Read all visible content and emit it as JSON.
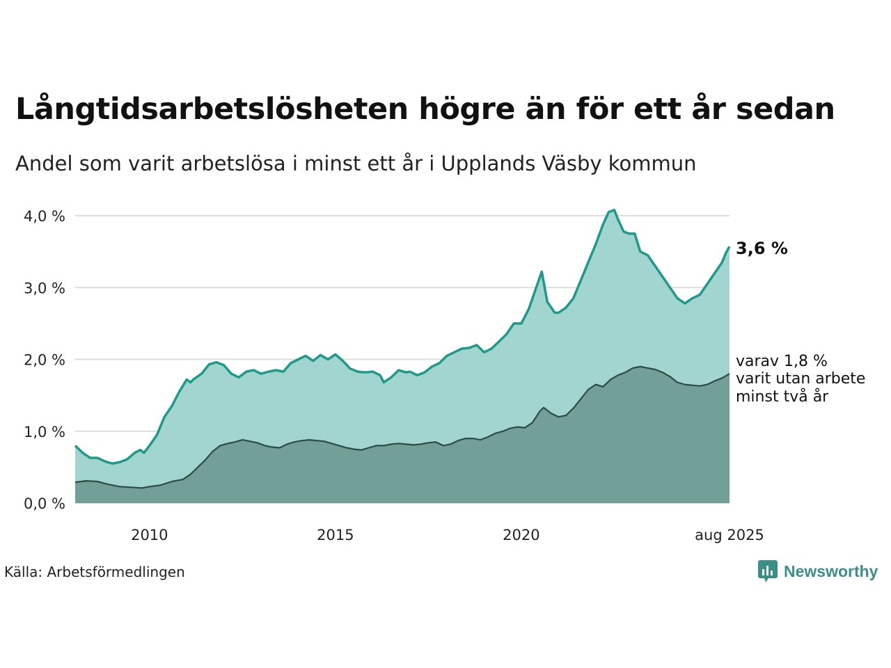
{
  "title": "Långtidsarbetslösheten högre än för ett år sedan",
  "subtitle": "Andel som varit arbetslösa i minst ett år i Upplands Väsby kommun",
  "source": "Källa: Arbetsförmedlingen",
  "brand": {
    "name": "Newsworthy",
    "color": "#3a8f86",
    "icon": "bar-chart-speech-icon"
  },
  "colors": {
    "area_total": "#a2d5cf",
    "line_total": "#1f9a88",
    "area_long": "#729f98",
    "line_long": "#2e4a46",
    "grid": "#dddddd"
  },
  "end_labels": {
    "total": "3,6 %",
    "long_line1": "varav 1,8 %",
    "long_line2": "varit utan arbete",
    "long_line3": "minst två år"
  },
  "chart_data": {
    "type": "area",
    "x_ticks": [
      {
        "x": 2010,
        "label": "2010"
      },
      {
        "x": 2015,
        "label": "2015"
      },
      {
        "x": 2020,
        "label": "2020"
      },
      {
        "x": 2025.6,
        "label": "aug 2025"
      }
    ],
    "y_ticks": [
      {
        "y": 0,
        "label": "0,0 %"
      },
      {
        "y": 1,
        "label": "1,0 %"
      },
      {
        "y": 2,
        "label": "2,0 %"
      },
      {
        "y": 3,
        "label": "3,0 %"
      },
      {
        "y": 4,
        "label": "4,0 %"
      }
    ],
    "xlim": [
      2008.0,
      2025.6
    ],
    "ylim": [
      0,
      4.0
    ],
    "grid": true,
    "series": [
      {
        "key": "total",
        "points": [
          [
            2008.0,
            0.8
          ],
          [
            2008.2,
            0.7
          ],
          [
            2008.4,
            0.63
          ],
          [
            2008.6,
            0.63
          ],
          [
            2008.8,
            0.58
          ],
          [
            2009.0,
            0.55
          ],
          [
            2009.2,
            0.57
          ],
          [
            2009.4,
            0.61
          ],
          [
            2009.6,
            0.7
          ],
          [
            2009.75,
            0.74
          ],
          [
            2009.85,
            0.7
          ],
          [
            2010.0,
            0.8
          ],
          [
            2010.2,
            0.95
          ],
          [
            2010.4,
            1.2
          ],
          [
            2010.6,
            1.35
          ],
          [
            2010.8,
            1.55
          ],
          [
            2011.0,
            1.72
          ],
          [
            2011.1,
            1.68
          ],
          [
            2011.2,
            1.73
          ],
          [
            2011.4,
            1.8
          ],
          [
            2011.6,
            1.93
          ],
          [
            2011.8,
            1.96
          ],
          [
            2012.0,
            1.92
          ],
          [
            2012.2,
            1.8
          ],
          [
            2012.4,
            1.75
          ],
          [
            2012.6,
            1.83
          ],
          [
            2012.8,
            1.85
          ],
          [
            2013.0,
            1.8
          ],
          [
            2013.2,
            1.83
          ],
          [
            2013.4,
            1.85
          ],
          [
            2013.6,
            1.83
          ],
          [
            2013.8,
            1.95
          ],
          [
            2014.0,
            2.0
          ],
          [
            2014.2,
            2.05
          ],
          [
            2014.4,
            1.98
          ],
          [
            2014.6,
            2.06
          ],
          [
            2014.8,
            2.0
          ],
          [
            2015.0,
            2.07
          ],
          [
            2015.2,
            1.98
          ],
          [
            2015.4,
            1.87
          ],
          [
            2015.6,
            1.83
          ],
          [
            2015.8,
            1.82
          ],
          [
            2016.0,
            1.83
          ],
          [
            2016.2,
            1.78
          ],
          [
            2016.3,
            1.68
          ],
          [
            2016.5,
            1.75
          ],
          [
            2016.7,
            1.85
          ],
          [
            2016.9,
            1.82
          ],
          [
            2017.0,
            1.83
          ],
          [
            2017.2,
            1.78
          ],
          [
            2017.4,
            1.82
          ],
          [
            2017.6,
            1.9
          ],
          [
            2017.8,
            1.95
          ],
          [
            2018.0,
            2.05
          ],
          [
            2018.2,
            2.1
          ],
          [
            2018.4,
            2.15
          ],
          [
            2018.6,
            2.16
          ],
          [
            2018.8,
            2.2
          ],
          [
            2019.0,
            2.1
          ],
          [
            2019.2,
            2.15
          ],
          [
            2019.4,
            2.25
          ],
          [
            2019.6,
            2.35
          ],
          [
            2019.8,
            2.5
          ],
          [
            2020.0,
            2.5
          ],
          [
            2020.2,
            2.7
          ],
          [
            2020.4,
            3.0
          ],
          [
            2020.55,
            3.22
          ],
          [
            2020.7,
            2.8
          ],
          [
            2020.9,
            2.65
          ],
          [
            2021.0,
            2.65
          ],
          [
            2021.2,
            2.72
          ],
          [
            2021.4,
            2.85
          ],
          [
            2021.6,
            3.1
          ],
          [
            2021.8,
            3.35
          ],
          [
            2022.0,
            3.6
          ],
          [
            2022.2,
            3.88
          ],
          [
            2022.35,
            4.05
          ],
          [
            2022.5,
            4.08
          ],
          [
            2022.6,
            3.95
          ],
          [
            2022.75,
            3.78
          ],
          [
            2022.9,
            3.75
          ],
          [
            2023.05,
            3.75
          ],
          [
            2023.2,
            3.5
          ],
          [
            2023.4,
            3.45
          ],
          [
            2023.6,
            3.3
          ],
          [
            2023.8,
            3.15
          ],
          [
            2024.0,
            3.0
          ],
          [
            2024.2,
            2.85
          ],
          [
            2024.4,
            2.78
          ],
          [
            2024.6,
            2.85
          ],
          [
            2024.8,
            2.9
          ],
          [
            2025.0,
            3.05
          ],
          [
            2025.2,
            3.2
          ],
          [
            2025.4,
            3.35
          ],
          [
            2025.5,
            3.48
          ],
          [
            2025.6,
            3.57
          ]
        ]
      },
      {
        "key": "long",
        "points": [
          [
            2008.0,
            0.29
          ],
          [
            2008.3,
            0.31
          ],
          [
            2008.6,
            0.3
          ],
          [
            2008.9,
            0.26
          ],
          [
            2009.2,
            0.23
          ],
          [
            2009.5,
            0.22
          ],
          [
            2009.8,
            0.21
          ],
          [
            2010.0,
            0.23
          ],
          [
            2010.3,
            0.25
          ],
          [
            2010.6,
            0.3
          ],
          [
            2010.9,
            0.33
          ],
          [
            2011.1,
            0.4
          ],
          [
            2011.3,
            0.5
          ],
          [
            2011.5,
            0.6
          ],
          [
            2011.7,
            0.72
          ],
          [
            2011.9,
            0.8
          ],
          [
            2012.1,
            0.83
          ],
          [
            2012.3,
            0.85
          ],
          [
            2012.5,
            0.88
          ],
          [
            2012.7,
            0.86
          ],
          [
            2012.9,
            0.84
          ],
          [
            2013.1,
            0.8
          ],
          [
            2013.3,
            0.78
          ],
          [
            2013.5,
            0.77
          ],
          [
            2013.7,
            0.82
          ],
          [
            2013.9,
            0.85
          ],
          [
            2014.1,
            0.87
          ],
          [
            2014.3,
            0.88
          ],
          [
            2014.5,
            0.87
          ],
          [
            2014.7,
            0.86
          ],
          [
            2014.9,
            0.83
          ],
          [
            2015.1,
            0.8
          ],
          [
            2015.3,
            0.77
          ],
          [
            2015.5,
            0.75
          ],
          [
            2015.7,
            0.74
          ],
          [
            2015.9,
            0.77
          ],
          [
            2016.1,
            0.8
          ],
          [
            2016.3,
            0.8
          ],
          [
            2016.5,
            0.82
          ],
          [
            2016.7,
            0.83
          ],
          [
            2016.9,
            0.82
          ],
          [
            2017.1,
            0.81
          ],
          [
            2017.3,
            0.82
          ],
          [
            2017.5,
            0.84
          ],
          [
            2017.7,
            0.85
          ],
          [
            2017.9,
            0.8
          ],
          [
            2018.1,
            0.82
          ],
          [
            2018.3,
            0.87
          ],
          [
            2018.5,
            0.9
          ],
          [
            2018.7,
            0.9
          ],
          [
            2018.9,
            0.88
          ],
          [
            2019.1,
            0.92
          ],
          [
            2019.3,
            0.97
          ],
          [
            2019.5,
            1.0
          ],
          [
            2019.7,
            1.04
          ],
          [
            2019.9,
            1.06
          ],
          [
            2020.1,
            1.05
          ],
          [
            2020.3,
            1.12
          ],
          [
            2020.5,
            1.28
          ],
          [
            2020.6,
            1.33
          ],
          [
            2020.8,
            1.25
          ],
          [
            2021.0,
            1.2
          ],
          [
            2021.2,
            1.22
          ],
          [
            2021.4,
            1.32
          ],
          [
            2021.6,
            1.45
          ],
          [
            2021.8,
            1.58
          ],
          [
            2022.0,
            1.65
          ],
          [
            2022.2,
            1.62
          ],
          [
            2022.4,
            1.72
          ],
          [
            2022.6,
            1.78
          ],
          [
            2022.8,
            1.82
          ],
          [
            2023.0,
            1.88
          ],
          [
            2023.2,
            1.9
          ],
          [
            2023.4,
            1.88
          ],
          [
            2023.6,
            1.86
          ],
          [
            2023.8,
            1.82
          ],
          [
            2024.0,
            1.76
          ],
          [
            2024.2,
            1.68
          ],
          [
            2024.4,
            1.65
          ],
          [
            2024.6,
            1.64
          ],
          [
            2024.8,
            1.63
          ],
          [
            2025.0,
            1.65
          ],
          [
            2025.2,
            1.7
          ],
          [
            2025.4,
            1.74
          ],
          [
            2025.6,
            1.8
          ]
        ]
      }
    ]
  }
}
